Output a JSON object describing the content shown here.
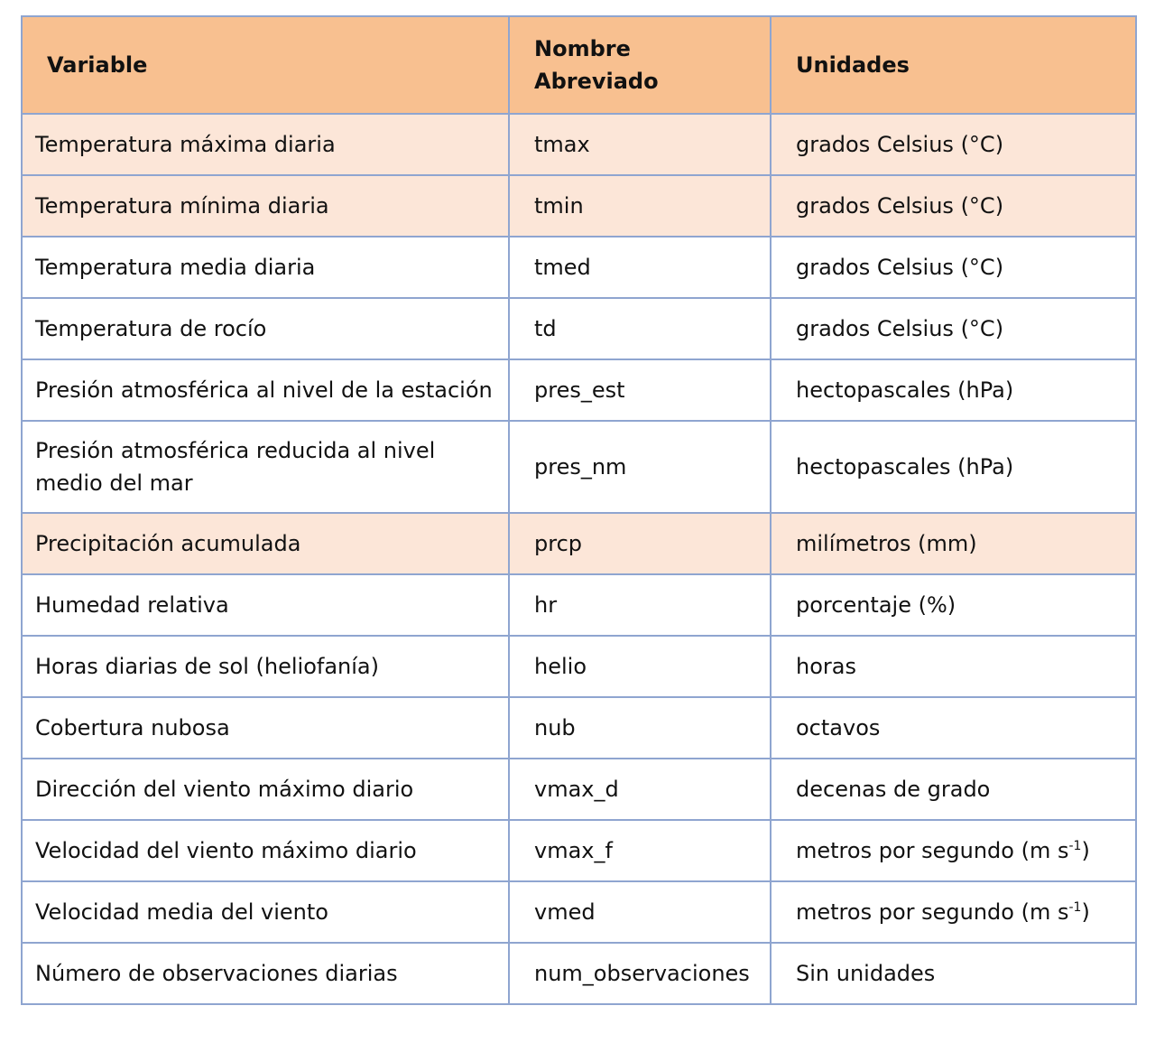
{
  "table": {
    "headers": [
      "Variable",
      "Nombre Abreviado",
      "Unidades"
    ],
    "rows": [
      {
        "variable": "Temperatura máxima diaria",
        "abbr": "tmax",
        "unit": "grados Celsius (°C)",
        "highlight": true
      },
      {
        "variable": "Temperatura mínima diaria",
        "abbr": "tmin",
        "unit": "grados Celsius (°C)",
        "highlight": true
      },
      {
        "variable": "Temperatura media diaria",
        "abbr": "tmed",
        "unit": "grados Celsius (°C)",
        "highlight": false
      },
      {
        "variable": "Temperatura de rocío",
        "abbr": "td",
        "unit": "grados Celsius (°C)",
        "highlight": false
      },
      {
        "variable": "Presión atmosférica al nivel de la estación",
        "abbr": "pres_est",
        "unit": "hectopascales (hPa)",
        "highlight": false
      },
      {
        "variable": "Presión atmosférica reducida al nivel medio  del mar",
        "abbr": "pres_nm",
        "unit": "hectopascales (hPa)",
        "highlight": false
      },
      {
        "variable": "Precipitación acumulada",
        "abbr": "prcp",
        "unit": "milímetros (mm)",
        "highlight": true
      },
      {
        "variable": "Humedad relativa",
        "abbr": "hr",
        "unit": "porcentaje (%)",
        "highlight": false
      },
      {
        "variable": "Horas diarias de sol (heliofanía)",
        "abbr": "helio",
        "unit": "horas",
        "highlight": false
      },
      {
        "variable": "Cobertura nubosa",
        "abbr": "nub",
        "unit": "octavos",
        "highlight": false
      },
      {
        "variable": "Dirección del viento máximo diario",
        "abbr": "vmax_d",
        "unit": "decenas de grado",
        "highlight": false
      },
      {
        "variable": "Velocidad del viento máximo diario",
        "abbr": "vmax_f",
        "unit": "metros por segundo (m s",
        "unit_sup": "-1",
        "unit_end": ")",
        "highlight": false
      },
      {
        "variable": "Velocidad media del viento",
        "abbr": "vmed",
        "unit": "metros por segundo (m s",
        "unit_sup": "-1",
        "unit_end": ")",
        "highlight": false
      },
      {
        "variable": "Número de observaciones diarias",
        "abbr": "num_observaciones",
        "unit": "Sin unidades",
        "highlight": false
      }
    ]
  },
  "colors": {
    "header_bg": "#f8c090",
    "highlight_bg": "#fce6d8",
    "border": "#8fa5d0"
  }
}
